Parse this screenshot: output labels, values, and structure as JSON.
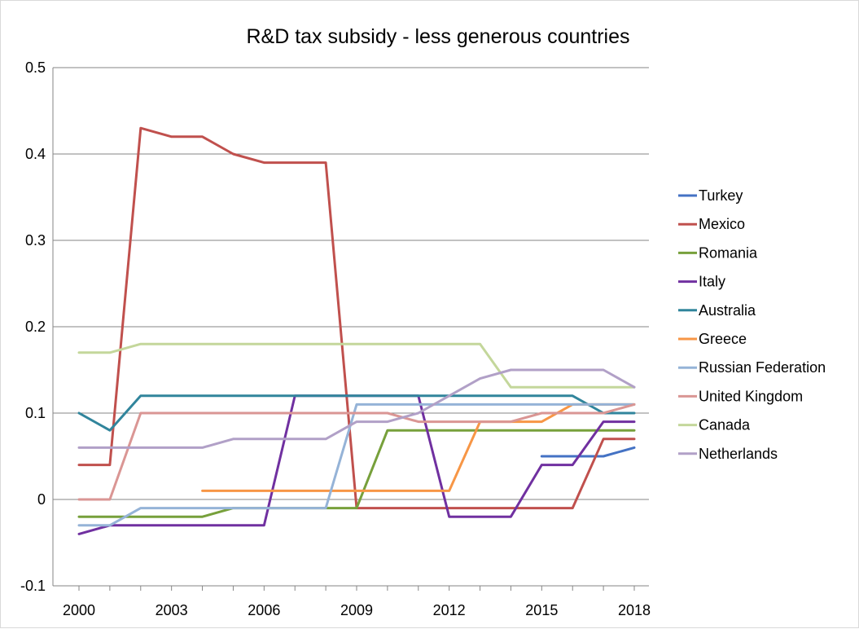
{
  "chart_data": {
    "type": "line",
    "title": "R&D tax subsidy - less generous countries",
    "xlabel": "",
    "ylabel": "",
    "ylim": [
      -0.1,
      0.5
    ],
    "yticks": [
      -0.1,
      0,
      0.1,
      0.2,
      0.3,
      0.4,
      0.5
    ],
    "ytick_labels": [
      "-0.1",
      "0",
      "0.1",
      "0.2",
      "0.3",
      "0.4",
      "0.5"
    ],
    "x": [
      2000,
      2001,
      2002,
      2003,
      2004,
      2005,
      2006,
      2007,
      2008,
      2009,
      2010,
      2011,
      2012,
      2013,
      2014,
      2015,
      2016,
      2017,
      2018
    ],
    "xtick_labels": [
      "2000",
      "2003",
      "2006",
      "2009",
      "2012",
      "2015",
      "2018"
    ],
    "xtick_label_years": [
      2000,
      2003,
      2006,
      2009,
      2012,
      2015,
      2018
    ],
    "grid": "horizontal",
    "legend_position": "right",
    "series": [
      {
        "name": "Turkey",
        "color": "#4472C4",
        "values": [
          null,
          null,
          null,
          null,
          null,
          null,
          null,
          null,
          null,
          null,
          null,
          null,
          null,
          null,
          null,
          0.05,
          0.05,
          0.05,
          0.06
        ]
      },
      {
        "name": "Mexico",
        "color": "#C0504D",
        "values": [
          0.04,
          0.04,
          0.43,
          0.42,
          0.42,
          0.4,
          0.39,
          0.39,
          0.39,
          -0.01,
          -0.01,
          -0.01,
          -0.01,
          -0.01,
          -0.01,
          -0.01,
          -0.01,
          0.07,
          0.07
        ]
      },
      {
        "name": "Romania",
        "color": "#77A03B",
        "values": [
          -0.02,
          -0.02,
          -0.02,
          -0.02,
          -0.02,
          -0.01,
          -0.01,
          -0.01,
          -0.01,
          -0.01,
          0.08,
          0.08,
          0.08,
          0.08,
          0.08,
          0.08,
          0.08,
          0.08,
          0.08
        ]
      },
      {
        "name": "Italy",
        "color": "#7030A0",
        "values": [
          -0.04,
          -0.03,
          -0.03,
          -0.03,
          -0.03,
          -0.03,
          -0.03,
          0.12,
          0.12,
          0.12,
          0.12,
          0.12,
          -0.02,
          -0.02,
          -0.02,
          0.04,
          0.04,
          0.09,
          0.09
        ]
      },
      {
        "name": "Australia",
        "color": "#31859C",
        "values": [
          0.1,
          0.08,
          0.12,
          0.12,
          0.12,
          0.12,
          0.12,
          0.12,
          0.12,
          0.12,
          0.12,
          0.12,
          0.12,
          0.12,
          0.12,
          0.12,
          0.12,
          0.1,
          0.1
        ]
      },
      {
        "name": "Greece",
        "color": "#F79646",
        "values": [
          null,
          null,
          null,
          null,
          0.01,
          0.01,
          0.01,
          0.01,
          0.01,
          0.01,
          0.01,
          0.01,
          0.01,
          0.09,
          0.09,
          0.09,
          0.11,
          0.11,
          0.11
        ]
      },
      {
        "name": "Russian Federation",
        "color": "#95B3D7",
        "values": [
          -0.03,
          -0.03,
          -0.01,
          -0.01,
          -0.01,
          -0.01,
          -0.01,
          -0.01,
          -0.01,
          0.11,
          0.11,
          0.11,
          0.11,
          0.11,
          0.11,
          0.11,
          0.11,
          0.11,
          0.11
        ]
      },
      {
        "name": "United Kingdom",
        "color": "#DA9694",
        "values": [
          0.0,
          0.0,
          0.1,
          0.1,
          0.1,
          0.1,
          0.1,
          0.1,
          0.1,
          0.1,
          0.1,
          0.09,
          0.09,
          0.09,
          0.09,
          0.1,
          0.1,
          0.1,
          0.11
        ]
      },
      {
        "name": "Canada",
        "color": "#C4D79B",
        "values": [
          0.17,
          0.17,
          0.18,
          0.18,
          0.18,
          0.18,
          0.18,
          0.18,
          0.18,
          0.18,
          0.18,
          0.18,
          0.18,
          0.18,
          0.13,
          0.13,
          0.13,
          0.13,
          0.13
        ]
      },
      {
        "name": "Netherlands",
        "color": "#B1A0C7",
        "values": [
          0.06,
          0.06,
          0.06,
          0.06,
          0.06,
          0.07,
          0.07,
          0.07,
          0.07,
          0.09,
          0.09,
          0.1,
          0.12,
          0.14,
          0.15,
          0.15,
          0.15,
          0.15,
          0.13
        ]
      }
    ]
  }
}
